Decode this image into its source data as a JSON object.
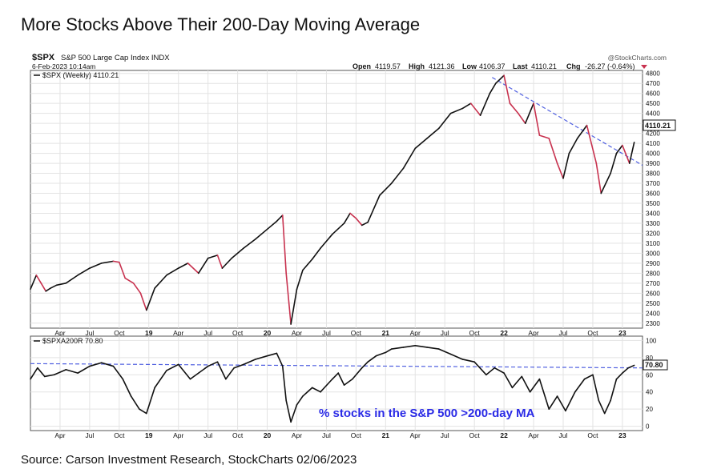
{
  "title": "More Stocks Above Their 200-Day Moving Average",
  "source": "Source: Carson Investment Research, StockCharts 02/06/2023",
  "header": {
    "symbol": "$SPX",
    "description": "S&P 500 Large Cap Index INDX",
    "date": "6-Feb-2023 10:14am",
    "watermark": "@StockCharts.com",
    "open_label": "Open",
    "open": "4119.57",
    "high_label": "High",
    "high": "4121.36",
    "low_label": "Low",
    "low": "4106.37",
    "last_label": "Last",
    "last": "4110.21",
    "chg_label": "Chg",
    "chg": "-26.27 (-0.64%)"
  },
  "colors": {
    "up": "#111111",
    "down": "#c8324f",
    "trend": "#5060e0",
    "annotation": "#2a2ae6",
    "grid": "#e3e3e3"
  },
  "chart_data": [
    {
      "type": "line",
      "legend": "$SPX (Weekly) 4110.21",
      "last_value_label": "4110.21",
      "ylim": [
        2250,
        4830
      ],
      "y_ticks": [
        2300,
        2400,
        2500,
        2600,
        2700,
        2800,
        2900,
        3000,
        3100,
        3200,
        3300,
        3400,
        3500,
        3600,
        3700,
        3800,
        3900,
        4000,
        4100,
        4200,
        4300,
        4400,
        4500,
        4600,
        4700,
        4800
      ],
      "xlim": [
        2018.0,
        2023.17
      ],
      "x_ticks": [
        "Apr",
        "Jul",
        "Oct",
        "19",
        "Apr",
        "Jul",
        "Oct",
        "20",
        "Apr",
        "Jul",
        "Oct",
        "21",
        "Apr",
        "Jul",
        "Oct",
        "22",
        "Apr",
        "Jul",
        "Oct",
        "23"
      ],
      "x_tick_positions": [
        2018.25,
        2018.5,
        2018.75,
        2019.0,
        2019.25,
        2019.5,
        2019.75,
        2020.0,
        2020.25,
        2020.5,
        2020.75,
        2021.0,
        2021.25,
        2021.5,
        2021.75,
        2022.0,
        2022.25,
        2022.5,
        2022.75,
        2023.0
      ],
      "x": [
        2018.0,
        2018.05,
        2018.09,
        2018.13,
        2018.17,
        2018.22,
        2018.3,
        2018.4,
        2018.5,
        2018.6,
        2018.7,
        2018.75,
        2018.8,
        2018.87,
        2018.93,
        2018.98,
        2019.05,
        2019.15,
        2019.25,
        2019.33,
        2019.42,
        2019.5,
        2019.58,
        2019.62,
        2019.7,
        2019.8,
        2019.9,
        2020.0,
        2020.08,
        2020.13,
        2020.16,
        2020.2,
        2020.25,
        2020.3,
        2020.38,
        2020.45,
        2020.55,
        2020.65,
        2020.7,
        2020.75,
        2020.8,
        2020.85,
        2020.95,
        2021.05,
        2021.15,
        2021.25,
        2021.35,
        2021.45,
        2021.55,
        2021.65,
        2021.72,
        2021.8,
        2021.88,
        2021.93,
        2022.0,
        2022.05,
        2022.12,
        2022.18,
        2022.25,
        2022.3,
        2022.38,
        2022.45,
        2022.5,
        2022.55,
        2022.62,
        2022.7,
        2022.78,
        2022.82,
        2022.9,
        2022.95,
        2023.0,
        2023.06,
        2023.1
      ],
      "values": [
        2640,
        2780,
        2700,
        2620,
        2650,
        2680,
        2700,
        2780,
        2850,
        2900,
        2920,
        2910,
        2750,
        2700,
        2600,
        2430,
        2650,
        2780,
        2850,
        2900,
        2800,
        2950,
        2980,
        2850,
        2950,
        3050,
        3140,
        3240,
        3320,
        3380,
        2800,
        2290,
        2640,
        2830,
        2940,
        3050,
        3190,
        3300,
        3400,
        3350,
        3280,
        3310,
        3580,
        3700,
        3850,
        4050,
        4150,
        4250,
        4400,
        4450,
        4500,
        4380,
        4600,
        4700,
        4780,
        4500,
        4400,
        4300,
        4500,
        4180,
        4150,
        3900,
        3750,
        4000,
        4150,
        4280,
        3900,
        3600,
        3800,
        4000,
        4080,
        3900,
        4110
      ]
    },
    {
      "type": "line",
      "legend": "$SPXA200R 70.80",
      "last_value_label": "70.80",
      "annotation": "% stocks in the S&P 500 >200-day MA",
      "ylim": [
        -5,
        105
      ],
      "y_ticks": [
        0,
        20,
        40,
        60,
        80,
        100
      ],
      "xlim": [
        2018.0,
        2023.17
      ],
      "x_ticks": [
        "Apr",
        "Jul",
        "Oct",
        "19",
        "Apr",
        "Jul",
        "Oct",
        "20",
        "Apr",
        "Jul",
        "Oct",
        "21",
        "Apr",
        "Jul",
        "Oct",
        "22",
        "Apr",
        "Jul",
        "Oct",
        "23"
      ],
      "x_tick_positions": [
        2018.25,
        2018.5,
        2018.75,
        2019.0,
        2019.25,
        2019.5,
        2019.75,
        2020.0,
        2020.25,
        2020.5,
        2020.75,
        2021.0,
        2021.25,
        2021.5,
        2021.75,
        2022.0,
        2022.25,
        2022.5,
        2022.75,
        2023.0
      ],
      "x": [
        2018.0,
        2018.06,
        2018.12,
        2018.2,
        2018.3,
        2018.4,
        2018.5,
        2018.6,
        2018.7,
        2018.78,
        2018.85,
        2018.92,
        2018.98,
        2019.05,
        2019.15,
        2019.25,
        2019.35,
        2019.42,
        2019.5,
        2019.58,
        2019.65,
        2019.72,
        2019.8,
        2019.9,
        2020.0,
        2020.08,
        2020.13,
        2020.16,
        2020.2,
        2020.25,
        2020.3,
        2020.38,
        2020.45,
        2020.55,
        2020.6,
        2020.65,
        2020.72,
        2020.8,
        2020.85,
        2020.92,
        2021.0,
        2021.05,
        2021.15,
        2021.25,
        2021.35,
        2021.45,
        2021.55,
        2021.65,
        2021.75,
        2021.85,
        2021.92,
        2022.0,
        2022.07,
        2022.15,
        2022.22,
        2022.3,
        2022.38,
        2022.45,
        2022.52,
        2022.6,
        2022.68,
        2022.75,
        2022.8,
        2022.85,
        2022.9,
        2022.95,
        2023.0,
        2023.05,
        2023.1
      ],
      "values": [
        55,
        68,
        58,
        60,
        66,
        62,
        70,
        74,
        70,
        55,
        35,
        20,
        15,
        45,
        65,
        72,
        55,
        62,
        70,
        75,
        55,
        68,
        72,
        78,
        82,
        85,
        70,
        30,
        5,
        25,
        35,
        45,
        40,
        55,
        62,
        48,
        55,
        68,
        75,
        82,
        86,
        90,
        92,
        94,
        92,
        90,
        84,
        78,
        75,
        60,
        68,
        62,
        45,
        58,
        40,
        55,
        20,
        35,
        18,
        40,
        55,
        60,
        30,
        15,
        30,
        55,
        62,
        68,
        71
      ]
    }
  ]
}
